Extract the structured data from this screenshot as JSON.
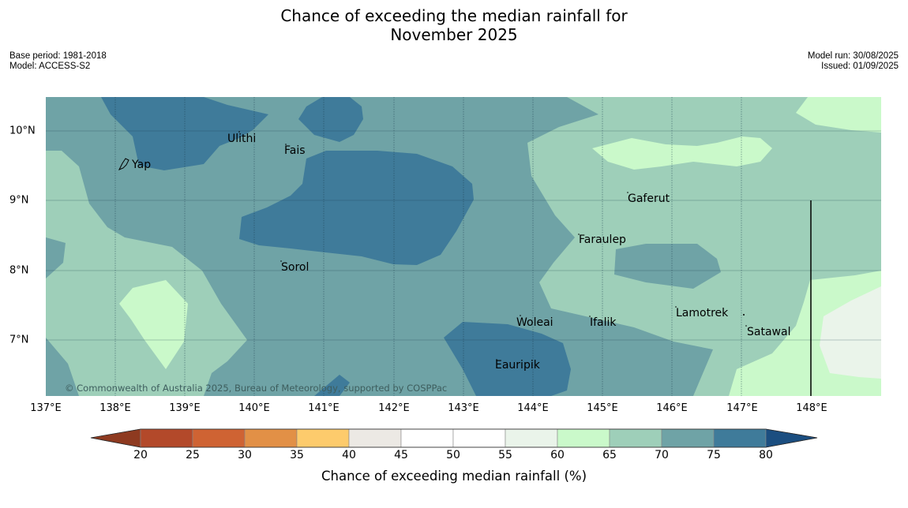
{
  "title_line1": "Chance of exceeding the median rainfall for",
  "title_line2": "November 2025",
  "base_period": "Base period: 1981-2018",
  "model": "Model: ACCESS-S2",
  "model_run": "Model run: 30/08/2025",
  "issued": "Issued: 01/09/2025",
  "copyright": "© Commonwealth of Australia 2025, Bureau of Meteorology, supported by COSPPac",
  "colorbar_label": "Chance of exceeding median rainfall (%)",
  "lon_labels": [
    "137°E",
    "138°E",
    "139°E",
    "140°E",
    "141°E",
    "142°E",
    "143°E",
    "144°E",
    "145°E",
    "146°E",
    "147°E",
    "148°E"
  ],
  "lat_labels": [
    "10°N",
    "9°N",
    "8°N",
    "7°N"
  ],
  "places": [
    "Yap",
    "Ulithi",
    "Fais",
    "Gaferut",
    "Faraulep",
    "Sorol",
    "Lamotrek",
    "Woleai",
    "Ifalik",
    "Satawal",
    "Eauripik"
  ],
  "colorbar_ticks": [
    "20",
    "25",
    "30",
    "35",
    "40",
    "45",
    "50",
    "55",
    "60",
    "65",
    "70",
    "75",
    "80"
  ],
  "colors": {
    "c70_75": "#6fa3a6",
    "c75_80": "#3f7b9a",
    "c65_70": "#9ecfb9",
    "c60_65": "#caf9ca",
    "c55_60": "#eaf4ea"
  },
  "colorbar_colors": [
    "#8e3a20",
    "#b3492a",
    "#cf6333",
    "#e29046",
    "#fdcb6c",
    "#ece9e4",
    "#ffffff",
    "#ffffff",
    "#eaf4ea",
    "#caf9ca",
    "#9ecfb9",
    "#6fa3a6",
    "#3f7b9a",
    "#1b4e80"
  ]
}
